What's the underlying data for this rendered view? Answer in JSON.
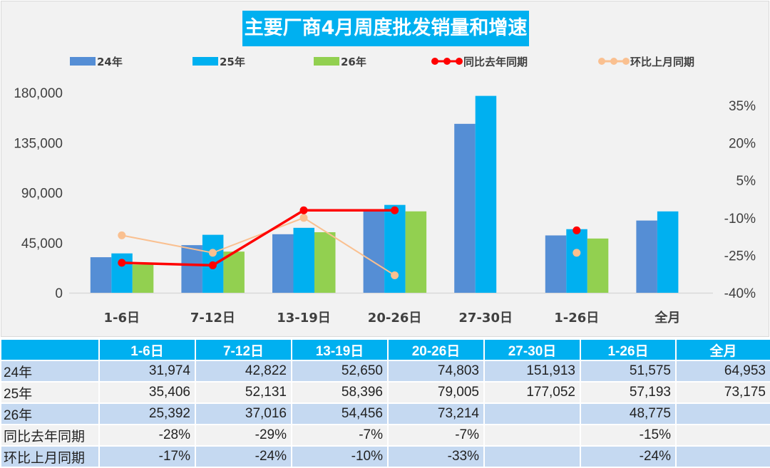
{
  "chart_data": {
    "type": "bar+line",
    "title": "主要厂商4月周度批发销量和增速",
    "categories": [
      "1-6日",
      "7-12日",
      "13-19日",
      "20-26日",
      "27-30日",
      "1-26日",
      "全月"
    ],
    "bar_series": [
      {
        "name": "24年",
        "color": "#558ed5",
        "values": [
          31974,
          42822,
          52650,
          74803,
          151913,
          51575,
          64953
        ]
      },
      {
        "name": "25年",
        "color": "#00b0f0",
        "values": [
          35406,
          52131,
          58396,
          79005,
          177052,
          57193,
          73175
        ]
      },
      {
        "name": "26年",
        "color": "#92d050",
        "values": [
          25392,
          37016,
          54456,
          73214,
          null,
          48775,
          null
        ]
      }
    ],
    "line_series": [
      {
        "name": "同比去年同期",
        "color": "#ff0000",
        "values": [
          -28,
          -29,
          -7,
          -7,
          null,
          -15,
          null
        ],
        "labels": [
          "-28%",
          "-29%",
          "-7%",
          "-7%",
          "",
          "-15%",
          ""
        ]
      },
      {
        "name": "环比上月同期",
        "color": "#fac090",
        "values": [
          -17,
          -24,
          -10,
          -33,
          null,
          -24,
          null
        ],
        "labels": [
          "-17%",
          "-24%",
          "-10%",
          "-33%",
          "",
          "-24%",
          ""
        ]
      }
    ],
    "y_left": {
      "range": [
        0,
        180000
      ],
      "ticks": [
        "0",
        "45,000",
        "90,000",
        "135,000",
        "180,000"
      ],
      "tick_values": [
        0,
        45000,
        90000,
        135000,
        180000
      ]
    },
    "y_right": {
      "range": [
        -40,
        35
      ],
      "ticks": [
        "-40%",
        "-25%",
        "-10%",
        "5%",
        "20%",
        "35%"
      ],
      "tick_values": [
        -40,
        -25,
        -10,
        5,
        20,
        35
      ]
    },
    "legend_position": "top",
    "grid": false
  },
  "table": {
    "corner": "",
    "rows": [
      {
        "label": "24年",
        "values": [
          "31,974",
          "42,822",
          "52,650",
          "74,803",
          "151,913",
          "51,575",
          "64,953"
        ]
      },
      {
        "label": "25年",
        "values": [
          "35,406",
          "52,131",
          "58,396",
          "79,005",
          "177,052",
          "57,193",
          "73,175"
        ]
      },
      {
        "label": "26年",
        "values": [
          "25,392",
          "37,016",
          "54,456",
          "73,214",
          "",
          "48,775",
          ""
        ]
      },
      {
        "label": "同比去年同期",
        "values": [
          "-28%",
          "-29%",
          "-7%",
          "-7%",
          "",
          "-15%",
          ""
        ]
      },
      {
        "label": "环比上月同期",
        "values": [
          "-17%",
          "-24%",
          "-10%",
          "-33%",
          "",
          "-24%",
          ""
        ]
      }
    ]
  }
}
